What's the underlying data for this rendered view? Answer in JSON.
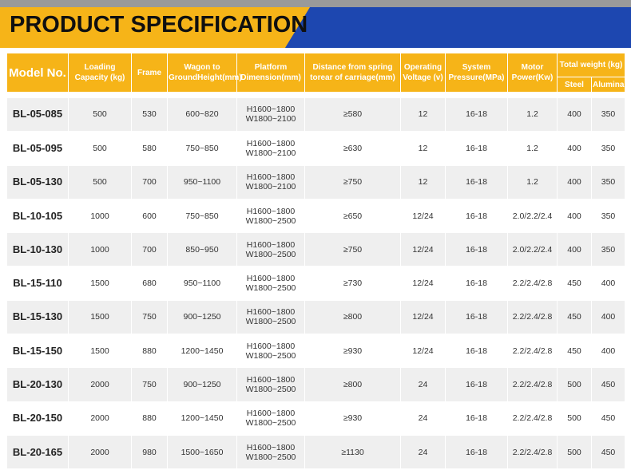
{
  "header": {
    "title": "PRODUCT SPECIFICATION"
  },
  "colors": {
    "accent": "#f6b418",
    "blue": "#1d47b0",
    "row_alt": "#efefef"
  },
  "table": {
    "headers": {
      "model": "Model No.",
      "loading": "Loading Capacity (kg)",
      "frame": "Frame",
      "wagon": "Wagon to GroundHeight(mm)",
      "platform": "Platform Dimension(mm)",
      "distance": "Distance from spring torear of carriage(mm)",
      "voltage": "Operating Voltage (v)",
      "pressure": "System Pressure(MPa)",
      "motor": "Motor Power(Kw)",
      "weight": "Total weight (kg)",
      "steel": "Steel",
      "alumina": "Alumina"
    },
    "rows": [
      {
        "model": "BL-05-085",
        "loading": "500",
        "frame": "530",
        "wagon": "600~820",
        "platform_h": "H1600~1800",
        "platform_w": "W1800~2100",
        "distance": "≥580",
        "voltage": "12",
        "pressure": "16-18",
        "motor": "1.2",
        "steel": "400",
        "alumina": "350"
      },
      {
        "model": "BL-05-095",
        "loading": "500",
        "frame": "580",
        "wagon": "750~850",
        "platform_h": "H1600~1800",
        "platform_w": "W1800~2100",
        "distance": "≥630",
        "voltage": "12",
        "pressure": "16-18",
        "motor": "1.2",
        "steel": "400",
        "alumina": "350"
      },
      {
        "model": "BL-05-130",
        "loading": "500",
        "frame": "700",
        "wagon": "950~1100",
        "platform_h": "H1600~1800",
        "platform_w": "W1800~2100",
        "distance": "≥750",
        "voltage": "12",
        "pressure": "16-18",
        "motor": "1.2",
        "steel": "400",
        "alumina": "350"
      },
      {
        "model": "BL-10-105",
        "loading": "1000",
        "frame": "600",
        "wagon": "750~850",
        "platform_h": "H1600~1800",
        "platform_w": "W1800~2500",
        "distance": "≥650",
        "voltage": "12/24",
        "pressure": "16-18",
        "motor": "2.0/2.2/2.4",
        "steel": "400",
        "alumina": "350"
      },
      {
        "model": "BL-10-130",
        "loading": "1000",
        "frame": "700",
        "wagon": "850~950",
        "platform_h": "H1600~1800",
        "platform_w": "W1800~2500",
        "distance": "≥750",
        "voltage": "12/24",
        "pressure": "16-18",
        "motor": "2.0/2.2/2.4",
        "steel": "400",
        "alumina": "350"
      },
      {
        "model": "BL-15-110",
        "loading": "1500",
        "frame": "680",
        "wagon": "950~1100",
        "platform_h": "H1600~1800",
        "platform_w": "W1800~2500",
        "distance": "≥730",
        "voltage": "12/24",
        "pressure": "16-18",
        "motor": "2.2/2.4/2.8",
        "steel": "450",
        "alumina": "400"
      },
      {
        "model": "BL-15-130",
        "loading": "1500",
        "frame": "750",
        "wagon": "900~1250",
        "platform_h": "H1600~1800",
        "platform_w": "W1800~2500",
        "distance": "≥800",
        "voltage": "12/24",
        "pressure": "16-18",
        "motor": "2.2/2.4/2.8",
        "steel": "450",
        "alumina": "400"
      },
      {
        "model": "BL-15-150",
        "loading": "1500",
        "frame": "880",
        "wagon": "1200~1450",
        "platform_h": "H1600~1800",
        "platform_w": "W1800~2500",
        "distance": "≥930",
        "voltage": "12/24",
        "pressure": "16-18",
        "motor": "2.2/2.4/2.8",
        "steel": "450",
        "alumina": "400"
      },
      {
        "model": "BL-20-130",
        "loading": "2000",
        "frame": "750",
        "wagon": "900~1250",
        "platform_h": "H1600~1800",
        "platform_w": "W1800~2500",
        "distance": "≥800",
        "voltage": "24",
        "pressure": "16-18",
        "motor": "2.2/2.4/2.8",
        "steel": "500",
        "alumina": "450"
      },
      {
        "model": "BL-20-150",
        "loading": "2000",
        "frame": "880",
        "wagon": "1200~1450",
        "platform_h": "H1600~1800",
        "platform_w": "W1800~2500",
        "distance": "≥930",
        "voltage": "24",
        "pressure": "16-18",
        "motor": "2.2/2.4/2.8",
        "steel": "500",
        "alumina": "450"
      },
      {
        "model": "BL-20-165",
        "loading": "2000",
        "frame": "980",
        "wagon": "1500~1650",
        "platform_h": "H1600~1800",
        "platform_w": "W1800~2500",
        "distance": "≥1130",
        "voltage": "24",
        "pressure": "16-18",
        "motor": "2.2/2.4/2.8",
        "steel": "500",
        "alumina": "450"
      }
    ]
  }
}
